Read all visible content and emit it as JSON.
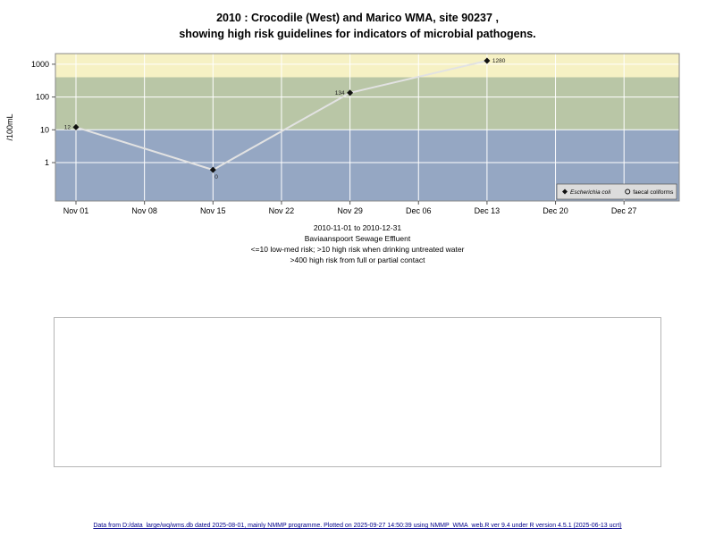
{
  "title": {
    "line1": "2010 : Crocodile (West) and Marico WMA, site 90237 ,",
    "line2": "showing high risk guidelines for indicators of microbial pathogens."
  },
  "chart_data": {
    "type": "line",
    "title": "2010 : Crocodile (West) and Marico WMA, site 90237, showing high risk guidelines for indicators of microbial pathogens.",
    "xlabel": "",
    "ylabel": "/100mL",
    "y_scale": "log10",
    "ylim": [
      0.07,
      2200
    ],
    "y_ticks": [
      1,
      10,
      100,
      1000
    ],
    "x_range": [
      "2010-11-01",
      "2010-12-31"
    ],
    "x_ticks": [
      {
        "label": "Nov 01",
        "day": 0
      },
      {
        "label": "Nov 08",
        "day": 7
      },
      {
        "label": "Nov 15",
        "day": 14
      },
      {
        "label": "Nov 22",
        "day": 21
      },
      {
        "label": "Nov 29",
        "day": 28
      },
      {
        "label": "Dec 06",
        "day": 35
      },
      {
        "label": "Dec 13",
        "day": 42
      },
      {
        "label": "Dec 20",
        "day": 49
      },
      {
        "label": "Dec 27",
        "day": 56
      }
    ],
    "risk_bands": [
      {
        "range": ">400",
        "meaning": "high risk from full or partial contact",
        "color": "#f6f1c4"
      },
      {
        "range": "10-400",
        "meaning": "high risk when drinking untreated water",
        "color": "#b9c6a6"
      },
      {
        "range": "<=10",
        "meaning": "low-med risk",
        "color": "#95a7c3"
      }
    ],
    "series": [
      {
        "name": "Escherichia coli",
        "marker": "diamond",
        "points": [
          {
            "date": "Nov 01",
            "day": 0,
            "value": 12,
            "plot_value": 12,
            "label": "12",
            "label_pos": "left"
          },
          {
            "date": "Nov 15",
            "day": 14,
            "value": 0,
            "plot_value": 0.6,
            "label": "0",
            "label_pos": "below"
          },
          {
            "date": "Nov 29",
            "day": 28,
            "value": 134,
            "plot_value": 134,
            "label": "134",
            "label_pos": "left"
          },
          {
            "date": "Dec 13",
            "day": 42,
            "value": 1280,
            "plot_value": 1280,
            "label": "1280",
            "label_pos": "right"
          }
        ]
      },
      {
        "name": "faecal coliforms",
        "marker": "circle",
        "points": []
      }
    ],
    "legend": [
      {
        "marker": "diamond",
        "label": "Escherichia coli",
        "italic": true
      },
      {
        "marker": "circle",
        "label": "faecal coliforms",
        "italic": false
      }
    ],
    "legend_position": "bottom-right-inside"
  },
  "caption": {
    "line1": "2010-11-01 to 2010-12-31",
    "line2": "Baviaanspoort Sewage Effluent",
    "line3": "<=10 low-med risk; >10 high risk when drinking untreated water",
    "line4": ">400 high risk from full or partial contact"
  },
  "footer": "Data from D:/data_large/wq/wms.db dated 2025-08-01, mainly NMMP programme. Plotted on 2025-09-27 14:50:39 using NMMP_WMA_web.R ver 9.4 under R version 4.5.1 (2025-06-13 ucrt)",
  "colors": {
    "band_high": "#f6f1c4",
    "band_med": "#b9c6a6",
    "band_low": "#95a7c3",
    "grid": "#ffffff",
    "line": "#e2e2e2",
    "point": "#111111",
    "plot_border": "#888888",
    "legend_bg": "#dcdcdc",
    "footer_text": "#00008b"
  }
}
